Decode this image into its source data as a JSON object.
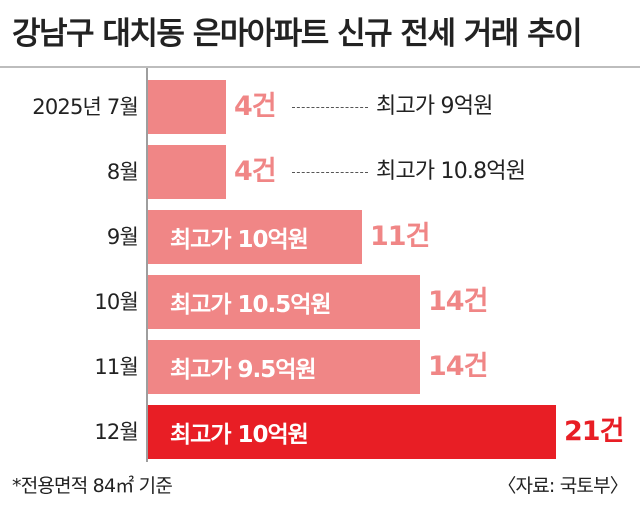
{
  "chart_data": {
    "type": "bar",
    "orientation": "horizontal",
    "title": "강남구 대치동 은마아파트 신규 전세 거래 추이",
    "unit": "건",
    "categories": [
      "2025년 7월",
      "8월",
      "9월",
      "10월",
      "11월",
      "12월"
    ],
    "values": [
      4,
      4,
      11,
      14,
      14,
      21
    ],
    "value_labels": [
      "4건",
      "4건",
      "11건",
      "14건",
      "14건",
      "21건"
    ],
    "max_price_labels": [
      "최고가 9억원",
      "최고가 10.8억원",
      "최고가 10억원",
      "최고가 10.5억원",
      "최고가 9.5억원",
      "최고가 10억원"
    ],
    "xlim": [
      0,
      21
    ],
    "grid": false,
    "legend": "none"
  },
  "colors": {
    "bar": "#f08686",
    "bar_highlight": "#e81e25",
    "count_text": "#f08686",
    "count_highlight": "#e81e25"
  },
  "footnote": "*전용면적 84㎡ 기준",
  "source": "〈자료: 국토부〉"
}
